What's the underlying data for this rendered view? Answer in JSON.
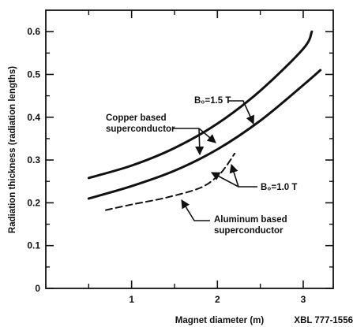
{
  "chart_data": {
    "type": "line",
    "xlabel": "Magnet diameter (m)",
    "ylabel": "Radiation thickness (radiation lengths)",
    "figure_id": "XBL 777-1556",
    "xlim": [
      0,
      3.35
    ],
    "ylim": [
      0,
      0.65
    ],
    "x_ticks": [
      1,
      2,
      3
    ],
    "y_ticks": [
      0,
      0.1,
      0.2,
      0.3,
      0.4,
      0.5,
      0.6
    ],
    "grid": false,
    "series": [
      {
        "name": "B0=1.5 T",
        "style": "solid",
        "x": [
          0.5,
          1.0,
          1.5,
          2.0,
          2.5,
          3.0,
          3.1
        ],
        "y": [
          0.258,
          0.287,
          0.328,
          0.385,
          0.462,
          0.56,
          0.6
        ]
      },
      {
        "name": "B0=1.0 T",
        "style": "solid",
        "x": [
          0.5,
          1.0,
          1.5,
          2.0,
          2.5,
          3.0,
          3.2
        ],
        "y": [
          0.21,
          0.239,
          0.275,
          0.325,
          0.392,
          0.475,
          0.51
        ]
      },
      {
        "name": "Aluminum based superconductor",
        "style": "dashed",
        "x": [
          0.7,
          1.0,
          1.4,
          1.8,
          2.0,
          2.1,
          2.2
        ],
        "y": [
          0.183,
          0.196,
          0.212,
          0.235,
          0.262,
          0.285,
          0.315
        ]
      }
    ],
    "annotations": {
      "copper": [
        "Copper based",
        "superconductor"
      ],
      "b_high": "B₀=1.5 T",
      "b_low": "B₀=1.0 T",
      "aluminum": [
        "Aluminum based",
        "superconductor"
      ]
    },
    "colors": {
      "line": "#111111"
    }
  }
}
